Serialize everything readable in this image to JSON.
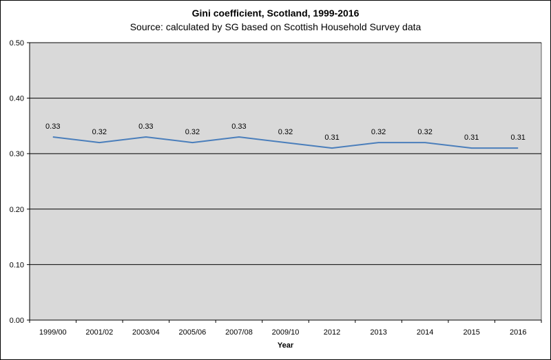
{
  "chart_data": {
    "type": "line",
    "title": "Gini coefficient, Scotland, 1999-2016",
    "subtitle": "Source: calculated by SG based on Scottish Household Survey data",
    "xlabel": "Year",
    "ylabel": "",
    "categories": [
      "1999/00",
      "2001/02",
      "2003/04",
      "2005/06",
      "2007/08",
      "2009/10",
      "2012",
      "2013",
      "2014",
      "2015",
      "2016"
    ],
    "series": [
      {
        "values": [
          0.33,
          0.32,
          0.33,
          0.32,
          0.33,
          0.32,
          0.31,
          0.32,
          0.32,
          0.31,
          0.31
        ],
        "data_labels": [
          "0.33",
          "0.32",
          "0.33",
          "0.32",
          "0.33",
          "0.32",
          "0.31",
          "0.32",
          "0.32",
          "0.31",
          "0.31"
        ],
        "color": "#4A7EBB"
      }
    ],
    "ylim": [
      0,
      0.5
    ],
    "yticks": [
      0.0,
      0.1,
      0.2,
      0.3,
      0.4,
      0.5
    ],
    "ytick_labels": [
      "0.00",
      "0.10",
      "0.20",
      "0.30",
      "0.40",
      "0.50"
    ],
    "grid": true,
    "plot_background": "#D9D9D9",
    "grid_color": "#000000"
  }
}
